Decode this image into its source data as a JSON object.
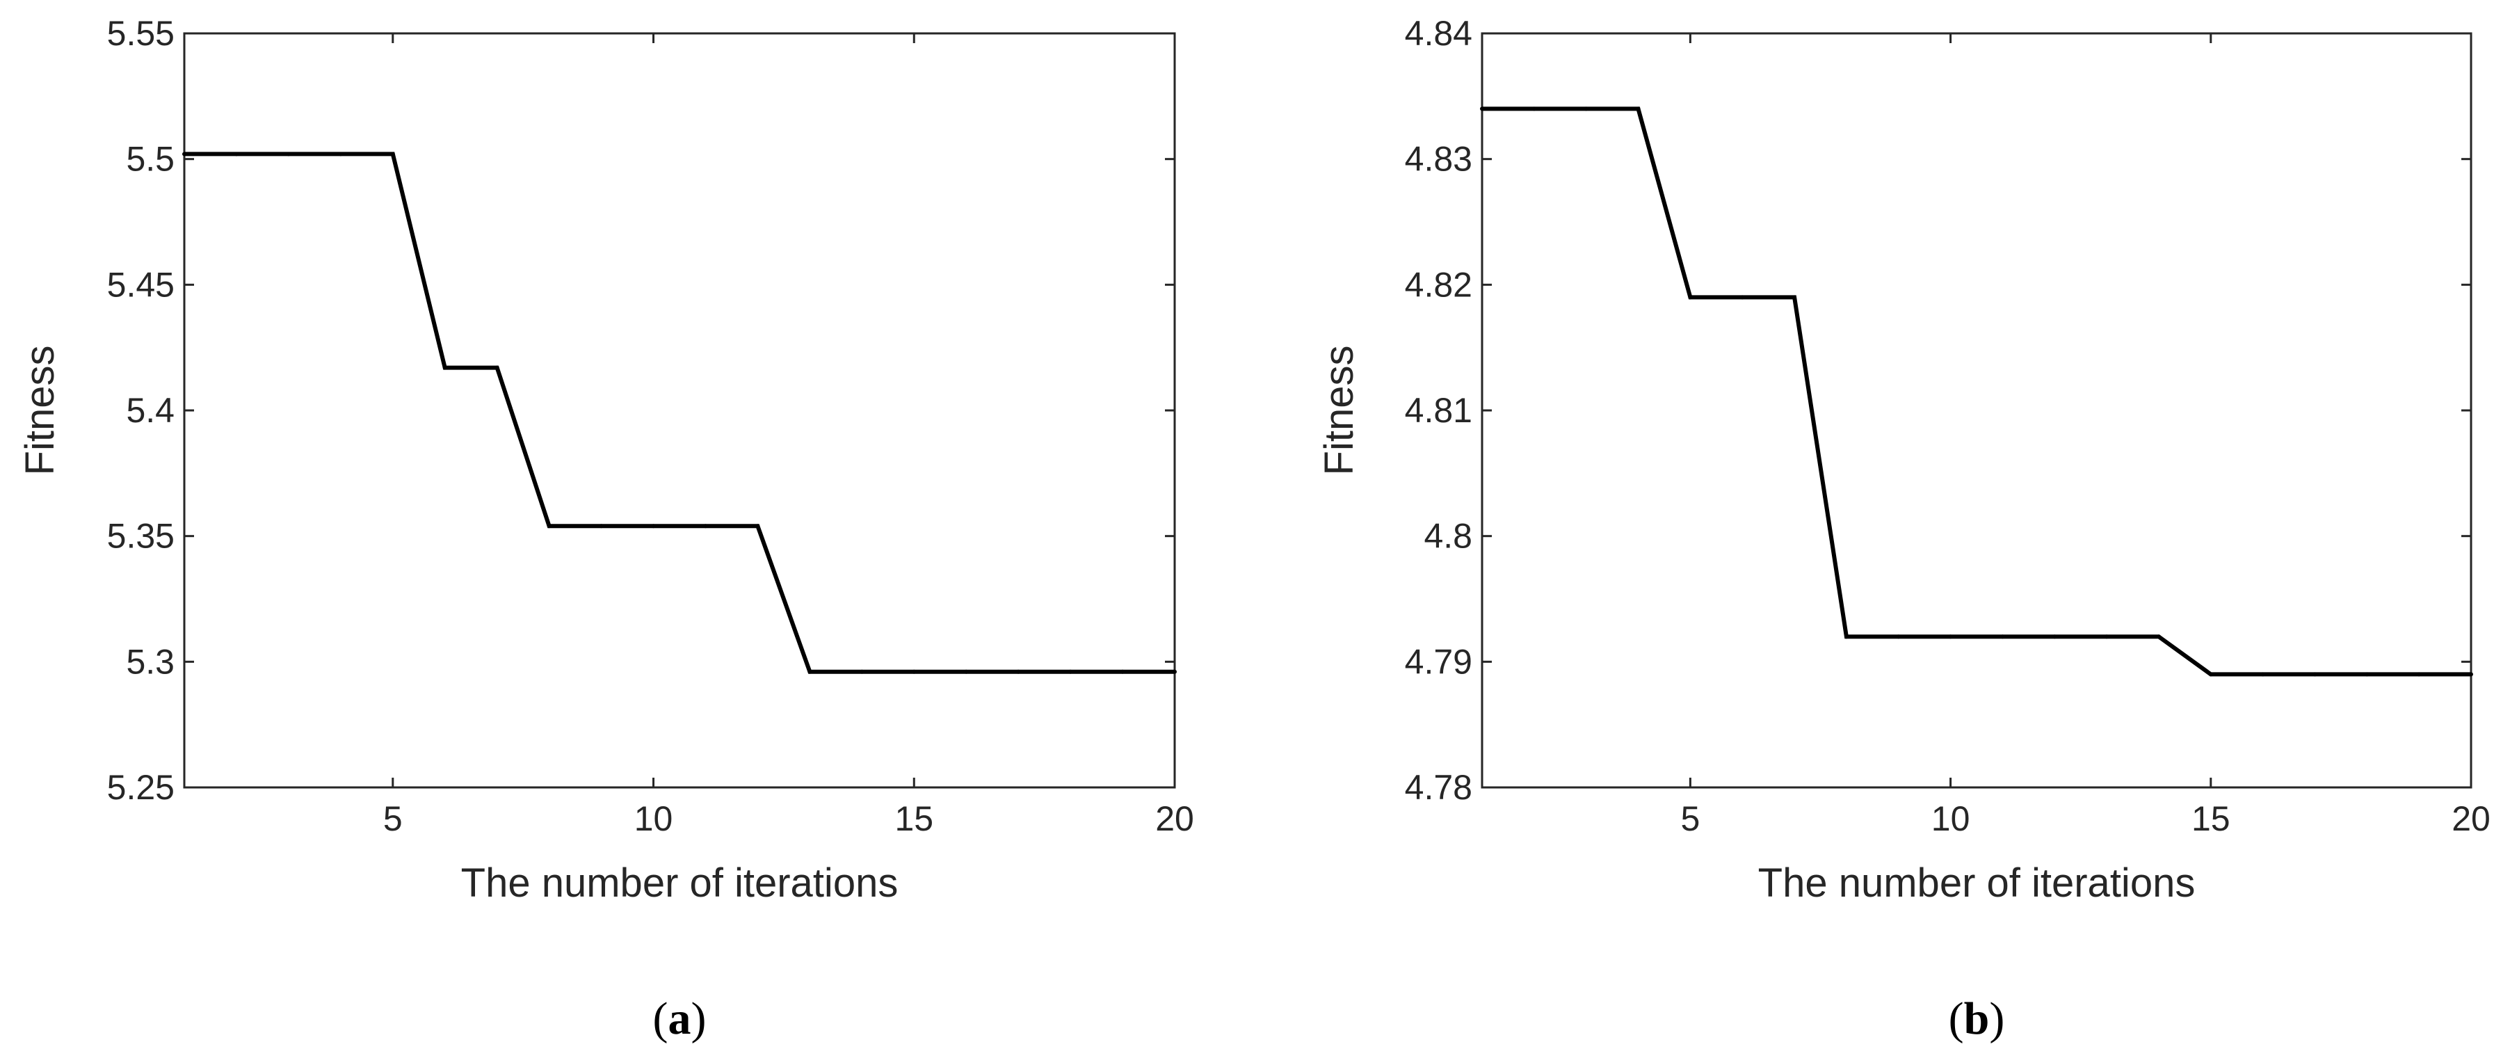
{
  "chart_data": [
    {
      "type": "line",
      "panel_label": "a",
      "xlabel": "The number of iterations",
      "ylabel": "Fitness",
      "xlim": [
        1,
        20
      ],
      "ylim": [
        5.25,
        5.55
      ],
      "xticks": [
        5,
        10,
        15,
        20
      ],
      "yticks": [
        5.25,
        5.3,
        5.35,
        5.4,
        5.45,
        5.5,
        5.55
      ],
      "ytick_labels": [
        "5.25",
        "5.3",
        "5.35",
        "5.4",
        "5.45",
        "5.5",
        "5.55"
      ],
      "grid": false,
      "line_color": "#000000",
      "series": [
        {
          "x": [
            1,
            2,
            3,
            4,
            5,
            6,
            7,
            8,
            9,
            10,
            11,
            12,
            13,
            14,
            15,
            16,
            17,
            18,
            19,
            20
          ],
          "values": [
            5.502,
            5.502,
            5.502,
            5.502,
            5.502,
            5.417,
            5.417,
            5.354,
            5.354,
            5.354,
            5.354,
            5.354,
            5.296,
            5.296,
            5.296,
            5.296,
            5.296,
            5.296,
            5.296,
            5.296
          ]
        }
      ]
    },
    {
      "type": "line",
      "panel_label": "b",
      "xlabel": "The number of iterations",
      "ylabel": "Fitness",
      "xlim": [
        1,
        20
      ],
      "ylim": [
        4.78,
        4.84
      ],
      "xticks": [
        5,
        10,
        15,
        20
      ],
      "yticks": [
        4.78,
        4.79,
        4.8,
        4.81,
        4.82,
        4.83,
        4.84
      ],
      "ytick_labels": [
        "4.78",
        "4.79",
        "4.8",
        "4.81",
        "4.82",
        "4.83",
        "4.84"
      ],
      "grid": false,
      "line_color": "#000000",
      "series": [
        {
          "x": [
            1,
            2,
            3,
            4,
            5,
            6,
            7,
            8,
            9,
            10,
            11,
            12,
            13,
            14,
            15,
            16,
            17,
            18,
            19,
            20
          ],
          "values": [
            4.834,
            4.834,
            4.834,
            4.834,
            4.819,
            4.819,
            4.819,
            4.792,
            4.792,
            4.792,
            4.792,
            4.792,
            4.792,
            4.792,
            4.789,
            4.789,
            4.789,
            4.789,
            4.789,
            4.789
          ]
        }
      ]
    }
  ]
}
